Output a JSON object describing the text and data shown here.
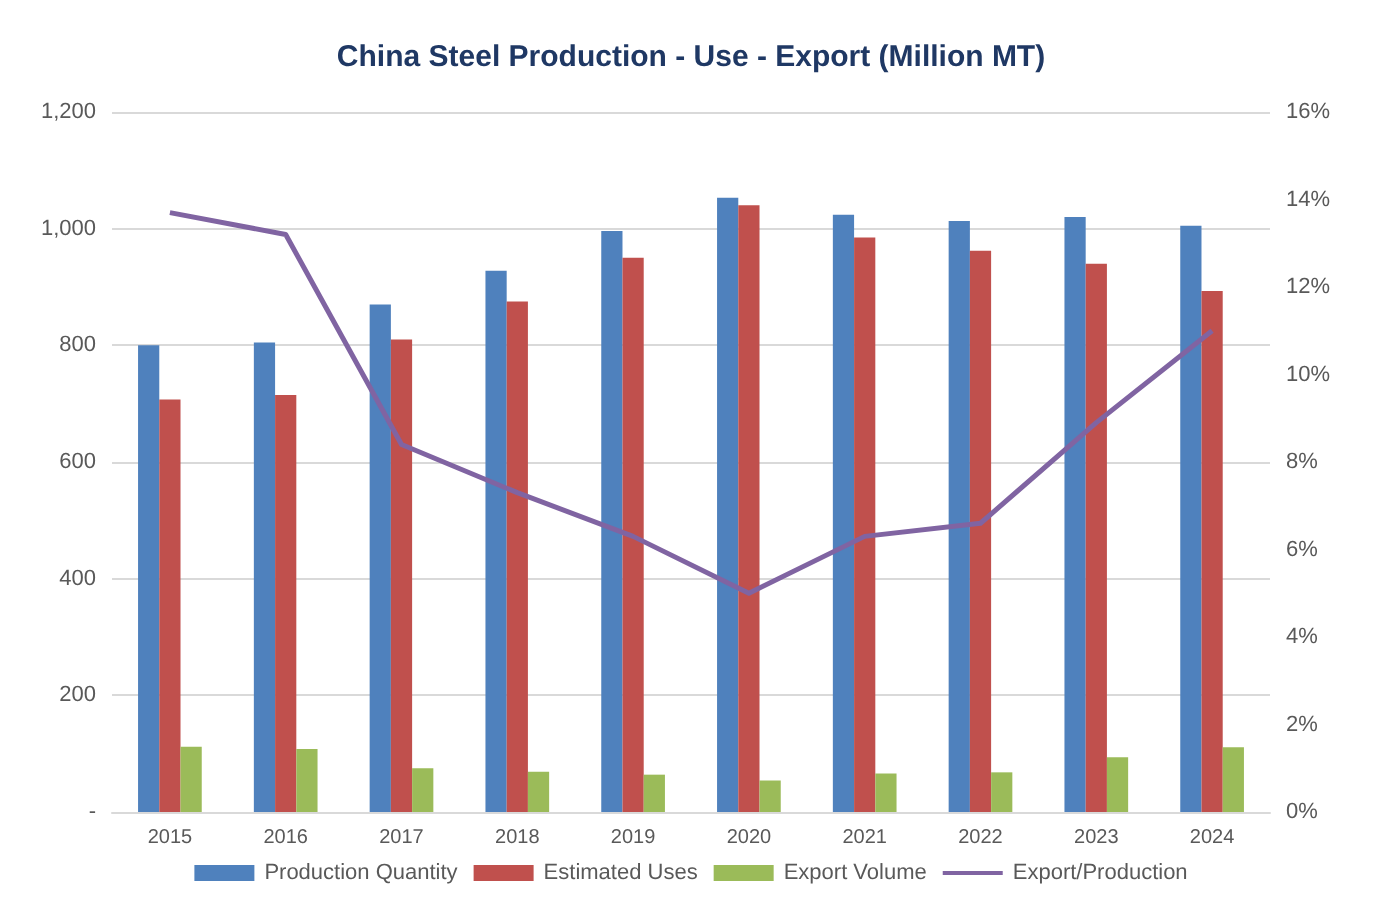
{
  "chart_data": {
    "type": "bar",
    "title": "China Steel Production - Use - Export (Million MT)",
    "categories": [
      "2015",
      "2016",
      "2017",
      "2018",
      "2019",
      "2020",
      "2021",
      "2022",
      "2023",
      "2024"
    ],
    "series": [
      {
        "name": "Production Quantity",
        "color": "#4f81bd",
        "values": [
          800,
          805,
          870,
          928,
          996,
          1053,
          1024,
          1013,
          1020,
          1005
        ]
      },
      {
        "name": "Estimated Uses",
        "color": "#c0504d",
        "values": [
          707,
          715,
          810,
          875,
          950,
          1040,
          985,
          962,
          940,
          893
        ]
      },
      {
        "name": "Export Volume",
        "color": "#9bbb59",
        "values": [
          112,
          108,
          75,
          69,
          64,
          54,
          66,
          68,
          94,
          111
        ]
      },
      {
        "name": "Export/Production",
        "type": "line",
        "axis": "y2",
        "color": "#8064a2",
        "values": [
          13.7,
          13.2,
          8.4,
          7.3,
          6.3,
          5.0,
          6.3,
          6.6,
          8.9,
          11.0
        ]
      }
    ],
    "ylim": [
      0,
      1200
    ],
    "yticks": [
      {
        "value": 0,
        "label": "-"
      },
      {
        "value": 200,
        "label": "200"
      },
      {
        "value": 400,
        "label": "400"
      },
      {
        "value": 600,
        "label": "600"
      },
      {
        "value": 800,
        "label": "800"
      },
      {
        "value": 1000,
        "label": "1,000"
      },
      {
        "value": 1200,
        "label": "1,200"
      }
    ],
    "y2lim": [
      0,
      16
    ],
    "y2ticks": [
      {
        "value": 0,
        "label": "0%"
      },
      {
        "value": 2,
        "label": "2%"
      },
      {
        "value": 4,
        "label": "4%"
      },
      {
        "value": 6,
        "label": "6%"
      },
      {
        "value": 8,
        "label": "8%"
      },
      {
        "value": 10,
        "label": "10%"
      },
      {
        "value": 12,
        "label": "12%"
      },
      {
        "value": 14,
        "label": "14%"
      },
      {
        "value": 16,
        "label": "16%"
      }
    ],
    "grid": "y",
    "legend": "bottom",
    "marker": "none",
    "line_style": "solid"
  }
}
